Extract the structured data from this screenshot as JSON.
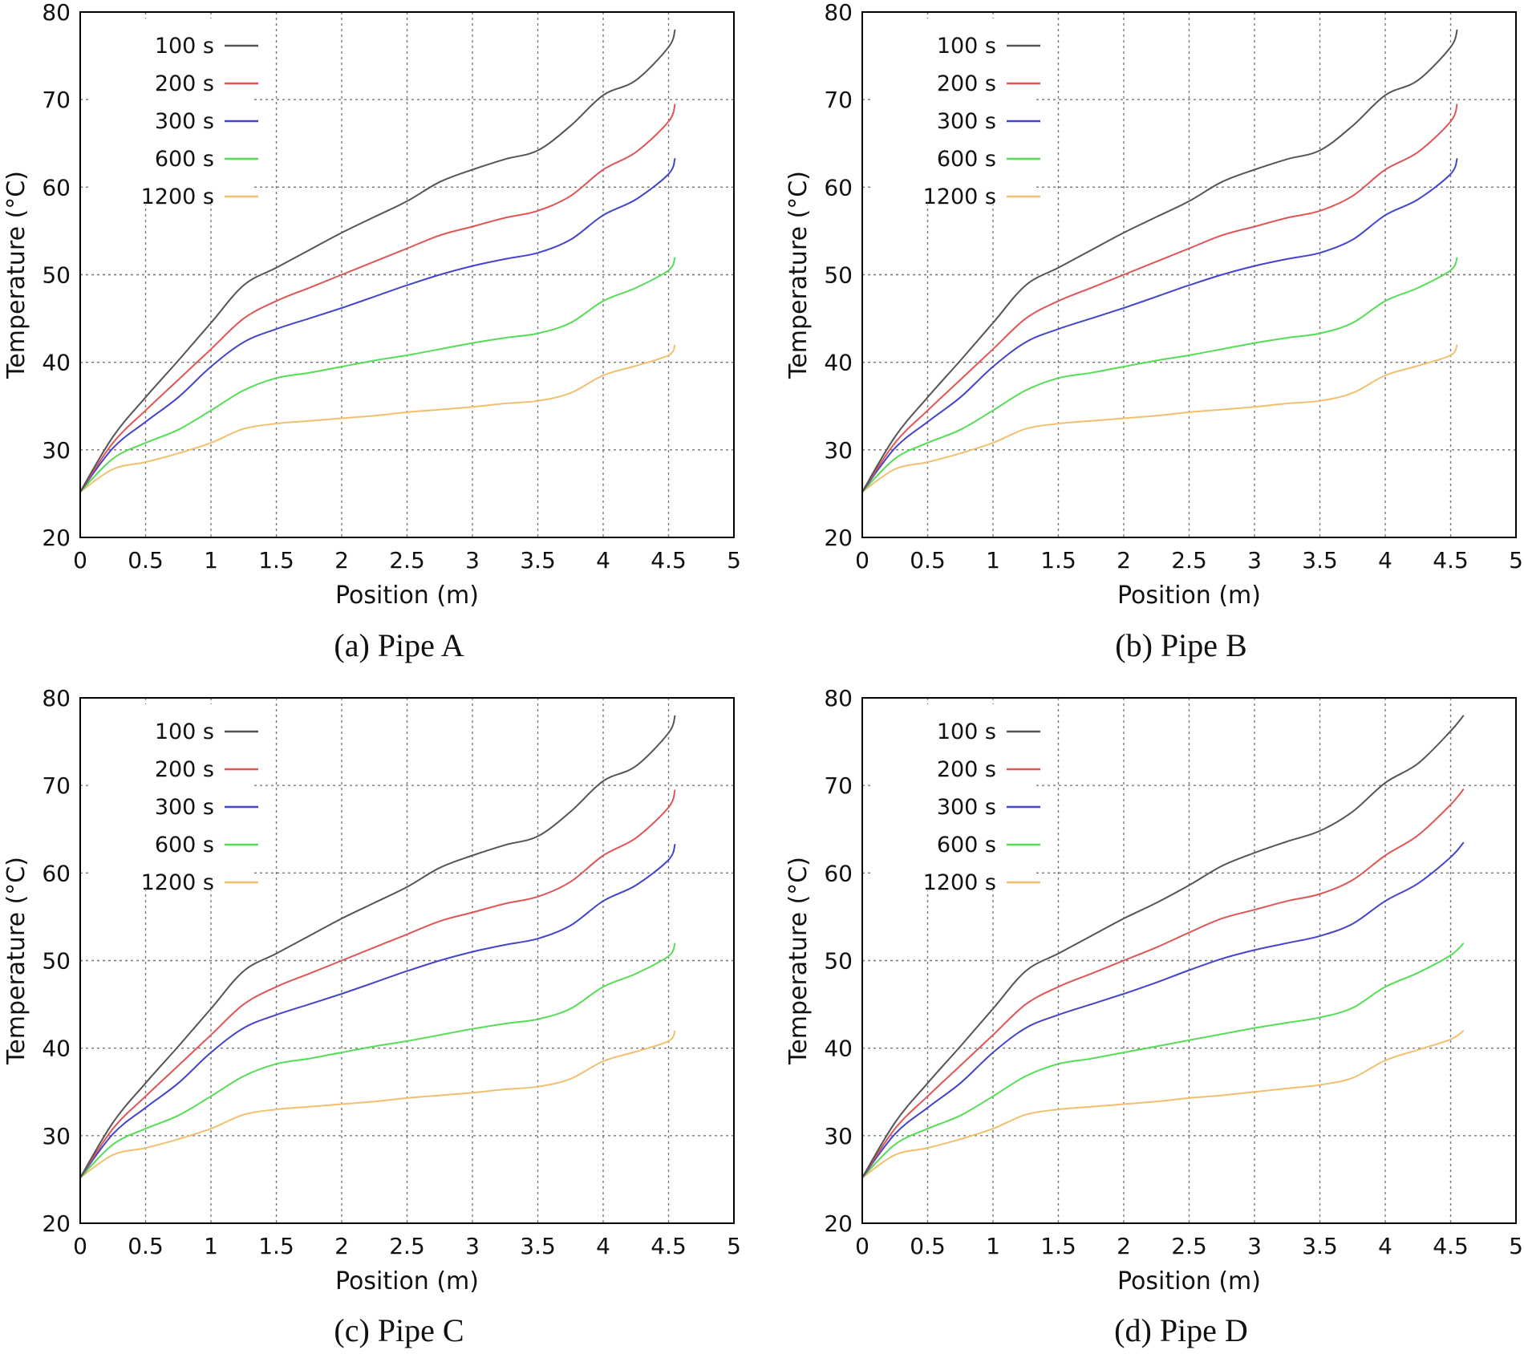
{
  "figure": {
    "panels_count": 4
  },
  "chart_data": [
    {
      "type": "line",
      "panel_id": "a",
      "caption": "(a) Pipe A",
      "xlabel": "Position (m)",
      "ylabel": "Temperature (°C)",
      "xlim": [
        0,
        5
      ],
      "ylim": [
        20,
        80
      ],
      "xticks": [
        0,
        0.5,
        1,
        1.5,
        2,
        2.5,
        3,
        3.5,
        4,
        4.5,
        5
      ],
      "xtick_labels": [
        "0",
        "0.5",
        "1",
        "1.5",
        "2",
        "2.5",
        "3",
        "3.5",
        "4",
        "4.5",
        "5"
      ],
      "yticks": [
        20,
        30,
        40,
        50,
        60,
        70,
        80
      ],
      "ytick_labels": [
        "20",
        "30",
        "40",
        "50",
        "60",
        "70",
        "80"
      ],
      "grid": true,
      "legend_position": "top-left",
      "x": [
        0,
        0.25,
        0.5,
        0.75,
        1,
        1.25,
        1.5,
        1.75,
        2,
        2.25,
        2.5,
        2.75,
        3,
        3.25,
        3.5,
        3.75,
        4,
        4.25,
        4.5,
        4.55
      ],
      "series": [
        {
          "name": "100 s",
          "color": "#555555",
          "values": [
            25.2,
            31.5,
            36.0,
            40.2,
            44.5,
            48.8,
            50.8,
            52.8,
            54.8,
            56.6,
            58.4,
            60.6,
            62.0,
            63.2,
            64.2,
            67.0,
            70.5,
            72.2,
            76.0,
            78.0
          ]
        },
        {
          "name": "200 s",
          "color": "#e05555",
          "values": [
            25.2,
            30.8,
            34.5,
            38.0,
            41.5,
            45.0,
            47.0,
            48.5,
            50.0,
            51.5,
            53.0,
            54.5,
            55.5,
            56.5,
            57.3,
            59.0,
            62.0,
            64.0,
            67.5,
            69.5
          ]
        },
        {
          "name": "300 s",
          "color": "#4444cc",
          "values": [
            25.2,
            30.2,
            33.2,
            36.0,
            39.5,
            42.3,
            43.8,
            45.0,
            46.2,
            47.5,
            48.8,
            50.0,
            51.0,
            51.8,
            52.5,
            54.0,
            56.8,
            58.6,
            61.5,
            63.3
          ]
        },
        {
          "name": "600 s",
          "color": "#55dd55",
          "values": [
            25.2,
            29.0,
            30.8,
            32.3,
            34.5,
            36.8,
            38.2,
            38.8,
            39.5,
            40.2,
            40.8,
            41.5,
            42.2,
            42.8,
            43.3,
            44.5,
            47.0,
            48.5,
            50.5,
            52.0
          ]
        },
        {
          "name": "1200 s",
          "color": "#f0c070",
          "values": [
            25.2,
            27.8,
            28.6,
            29.6,
            30.8,
            32.4,
            33.0,
            33.3,
            33.6,
            33.9,
            34.3,
            34.6,
            34.9,
            35.3,
            35.6,
            36.5,
            38.5,
            39.6,
            40.8,
            42.0
          ]
        }
      ]
    },
    {
      "type": "line",
      "panel_id": "b",
      "caption": "(b) Pipe B",
      "xlabel": "Position (m)",
      "ylabel": "Temperature (°C)",
      "xlim": [
        0,
        5
      ],
      "ylim": [
        20,
        80
      ],
      "xticks": [
        0,
        0.5,
        1,
        1.5,
        2,
        2.5,
        3,
        3.5,
        4,
        4.5,
        5
      ],
      "xtick_labels": [
        "0",
        "0.5",
        "1",
        "1.5",
        "2",
        "2.5",
        "3",
        "3.5",
        "4",
        "4.5",
        "5"
      ],
      "yticks": [
        20,
        30,
        40,
        50,
        60,
        70,
        80
      ],
      "ytick_labels": [
        "20",
        "30",
        "40",
        "50",
        "60",
        "70",
        "80"
      ],
      "grid": true,
      "legend_position": "top-left",
      "x": [
        0,
        0.25,
        0.5,
        0.75,
        1,
        1.25,
        1.5,
        1.75,
        2,
        2.25,
        2.5,
        2.75,
        3,
        3.25,
        3.5,
        3.75,
        4,
        4.25,
        4.5,
        4.55
      ],
      "series": [
        {
          "name": "100 s",
          "color": "#555555",
          "values": [
            25.2,
            31.5,
            36.0,
            40.2,
            44.5,
            48.8,
            50.8,
            52.8,
            54.8,
            56.6,
            58.4,
            60.6,
            62.0,
            63.2,
            64.2,
            67.0,
            70.5,
            72.2,
            76.0,
            78.0
          ]
        },
        {
          "name": "200 s",
          "color": "#e05555",
          "values": [
            25.2,
            30.8,
            34.5,
            38.0,
            41.5,
            45.0,
            47.0,
            48.5,
            50.0,
            51.5,
            53.0,
            54.5,
            55.5,
            56.5,
            57.3,
            59.0,
            62.0,
            64.0,
            67.5,
            69.5
          ]
        },
        {
          "name": "300 s",
          "color": "#4444cc",
          "values": [
            25.2,
            30.2,
            33.2,
            36.0,
            39.5,
            42.3,
            43.8,
            45.0,
            46.2,
            47.5,
            48.8,
            50.0,
            51.0,
            51.8,
            52.5,
            54.0,
            56.8,
            58.6,
            61.5,
            63.3
          ]
        },
        {
          "name": "600 s",
          "color": "#55dd55",
          "values": [
            25.2,
            29.0,
            30.8,
            32.3,
            34.5,
            36.8,
            38.2,
            38.8,
            39.5,
            40.2,
            40.8,
            41.5,
            42.2,
            42.8,
            43.3,
            44.5,
            47.0,
            48.5,
            50.5,
            52.0
          ]
        },
        {
          "name": "1200 s",
          "color": "#f0c070",
          "values": [
            25.2,
            27.8,
            28.6,
            29.6,
            30.8,
            32.4,
            33.0,
            33.3,
            33.6,
            33.9,
            34.3,
            34.6,
            34.9,
            35.3,
            35.6,
            36.5,
            38.5,
            39.6,
            40.8,
            42.0
          ]
        }
      ]
    },
    {
      "type": "line",
      "panel_id": "c",
      "caption": "(c) Pipe C",
      "xlabel": "Position (m)",
      "ylabel": "Temperature (°C)",
      "xlim": [
        0,
        5
      ],
      "ylim": [
        20,
        80
      ],
      "xticks": [
        0,
        0.5,
        1,
        1.5,
        2,
        2.5,
        3,
        3.5,
        4,
        4.5,
        5
      ],
      "xtick_labels": [
        "0",
        "0.5",
        "1",
        "1.5",
        "2",
        "2.5",
        "3",
        "3.5",
        "4",
        "4.5",
        "5"
      ],
      "yticks": [
        20,
        30,
        40,
        50,
        60,
        70,
        80
      ],
      "ytick_labels": [
        "20",
        "30",
        "40",
        "50",
        "60",
        "70",
        "80"
      ],
      "grid": true,
      "legend_position": "top-left",
      "x": [
        0,
        0.25,
        0.5,
        0.75,
        1,
        1.25,
        1.5,
        1.75,
        2,
        2.25,
        2.5,
        2.75,
        3,
        3.25,
        3.5,
        3.75,
        4,
        4.25,
        4.5,
        4.55
      ],
      "series": [
        {
          "name": "100 s",
          "color": "#555555",
          "values": [
            25.2,
            31.5,
            36.0,
            40.2,
            44.5,
            48.8,
            50.8,
            52.8,
            54.8,
            56.6,
            58.4,
            60.6,
            62.0,
            63.2,
            64.2,
            67.0,
            70.5,
            72.2,
            76.0,
            78.0
          ]
        },
        {
          "name": "200 s",
          "color": "#e05555",
          "values": [
            25.2,
            30.8,
            34.5,
            38.0,
            41.5,
            45.0,
            47.0,
            48.5,
            50.0,
            51.5,
            53.0,
            54.5,
            55.5,
            56.5,
            57.3,
            59.0,
            62.0,
            64.0,
            67.5,
            69.5
          ]
        },
        {
          "name": "300 s",
          "color": "#4444cc",
          "values": [
            25.2,
            30.2,
            33.2,
            36.0,
            39.5,
            42.3,
            43.8,
            45.0,
            46.2,
            47.5,
            48.8,
            50.0,
            51.0,
            51.8,
            52.5,
            54.0,
            56.8,
            58.6,
            61.5,
            63.3
          ]
        },
        {
          "name": "600 s",
          "color": "#55dd55",
          "values": [
            25.2,
            29.0,
            30.8,
            32.3,
            34.5,
            36.8,
            38.2,
            38.8,
            39.5,
            40.2,
            40.8,
            41.5,
            42.2,
            42.8,
            43.3,
            44.5,
            47.0,
            48.5,
            50.5,
            52.0
          ]
        },
        {
          "name": "1200 s",
          "color": "#f0c070",
          "values": [
            25.2,
            27.8,
            28.6,
            29.6,
            30.8,
            32.4,
            33.0,
            33.3,
            33.6,
            33.9,
            34.3,
            34.6,
            34.9,
            35.3,
            35.6,
            36.5,
            38.5,
            39.6,
            40.8,
            42.0
          ]
        }
      ]
    },
    {
      "type": "line",
      "panel_id": "d",
      "caption": "(d) Pipe D",
      "xlabel": "Position (m)",
      "ylabel": "Temperature (°C)",
      "xlim": [
        0,
        5
      ],
      "ylim": [
        20,
        80
      ],
      "xticks": [
        0,
        0.5,
        1,
        1.5,
        2,
        2.5,
        3,
        3.5,
        4,
        4.5,
        5
      ],
      "xtick_labels": [
        "0",
        "0.5",
        "1",
        "1.5",
        "2",
        "2.5",
        "3",
        "3.5",
        "4",
        "4.5",
        "5"
      ],
      "yticks": [
        20,
        30,
        40,
        50,
        60,
        70,
        80
      ],
      "ytick_labels": [
        "20",
        "30",
        "40",
        "50",
        "60",
        "70",
        "80"
      ],
      "grid": true,
      "legend_position": "top-left",
      "x": [
        0,
        0.25,
        0.5,
        0.75,
        1,
        1.25,
        1.5,
        1.75,
        2,
        2.25,
        2.5,
        2.75,
        3,
        3.25,
        3.5,
        3.75,
        4,
        4.25,
        4.5,
        4.6
      ],
      "series": [
        {
          "name": "100 s",
          "color": "#555555",
          "values": [
            25.2,
            31.5,
            36.0,
            40.2,
            44.5,
            48.8,
            50.8,
            52.8,
            54.8,
            56.6,
            58.6,
            60.8,
            62.3,
            63.6,
            64.8,
            67.0,
            70.3,
            72.5,
            76.2,
            78.0
          ]
        },
        {
          "name": "200 s",
          "color": "#e05555",
          "values": [
            25.2,
            30.8,
            34.5,
            38.0,
            41.5,
            45.0,
            47.0,
            48.5,
            50.0,
            51.5,
            53.2,
            54.8,
            55.8,
            56.8,
            57.6,
            59.2,
            62.0,
            64.3,
            67.8,
            69.6
          ]
        },
        {
          "name": "300 s",
          "color": "#4444cc",
          "values": [
            25.2,
            30.2,
            33.2,
            36.0,
            39.5,
            42.3,
            43.8,
            45.0,
            46.2,
            47.5,
            48.9,
            50.2,
            51.2,
            52.0,
            52.8,
            54.2,
            56.8,
            58.8,
            61.8,
            63.5
          ]
        },
        {
          "name": "600 s",
          "color": "#55dd55",
          "values": [
            25.2,
            29.0,
            30.8,
            32.3,
            34.5,
            36.8,
            38.2,
            38.8,
            39.5,
            40.2,
            40.9,
            41.6,
            42.3,
            42.9,
            43.5,
            44.6,
            47.0,
            48.6,
            50.6,
            52.0
          ]
        },
        {
          "name": "1200 s",
          "color": "#f0c070",
          "values": [
            25.2,
            27.8,
            28.6,
            29.6,
            30.8,
            32.4,
            33.0,
            33.3,
            33.6,
            33.9,
            34.3,
            34.6,
            35.0,
            35.4,
            35.8,
            36.6,
            38.6,
            39.8,
            41.0,
            42.0
          ]
        }
      ]
    }
  ]
}
